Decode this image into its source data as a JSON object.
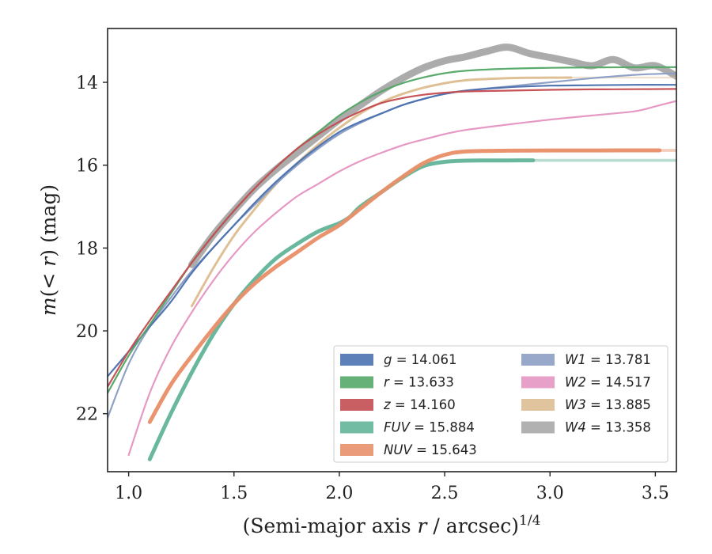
{
  "chart_data": {
    "type": "line",
    "xlabel": "(Semi-major axis r / arcsec)^{1/4}",
    "ylabel": "m(< r) (mag)",
    "xlim": [
      0.9,
      3.6
    ],
    "ylim": [
      23.4,
      12.7
    ],
    "y_inverted": true,
    "x_ticks": [
      1.0,
      1.5,
      2.0,
      2.5,
      3.0,
      3.5
    ],
    "x_tick_labels": [
      "1.0",
      "1.5",
      "2.0",
      "2.5",
      "3.0",
      "3.5"
    ],
    "y_ticks": [
      14,
      16,
      18,
      20,
      22
    ],
    "y_tick_labels": [
      "14",
      "16",
      "18",
      "20",
      "22"
    ],
    "grid": false,
    "legend_position": "lower-right",
    "series": [
      {
        "name": "g = 14.061",
        "color": "#4c72b0",
        "width": 2.2,
        "dark_end": 3.6,
        "x": [
          0.9,
          1.0,
          1.1,
          1.2,
          1.3,
          1.4,
          1.5,
          1.6,
          1.7,
          1.8,
          1.9,
          2.0,
          2.1,
          2.2,
          2.3,
          2.4,
          2.5,
          2.6,
          2.8,
          3.0,
          3.2,
          3.4,
          3.6
        ],
        "y": [
          21.1,
          20.5,
          19.9,
          19.3,
          18.6,
          18.0,
          17.45,
          16.9,
          16.4,
          15.95,
          15.55,
          15.2,
          14.95,
          14.75,
          14.55,
          14.4,
          14.28,
          14.2,
          14.12,
          14.08,
          14.07,
          14.06,
          14.061
        ]
      },
      {
        "name": "r = 13.633",
        "color": "#55a868",
        "width": 2.2,
        "dark_end": 3.6,
        "x": [
          0.9,
          1.0,
          1.1,
          1.2,
          1.3,
          1.4,
          1.5,
          1.6,
          1.7,
          1.8,
          1.9,
          2.0,
          2.1,
          2.2,
          2.3,
          2.4,
          2.5,
          2.6,
          2.8,
          3.0,
          3.2,
          3.4,
          3.6
        ],
        "y": [
          21.5,
          20.6,
          19.85,
          19.1,
          18.35,
          17.7,
          17.1,
          16.55,
          16.05,
          15.6,
          15.2,
          14.8,
          14.48,
          14.22,
          14.02,
          13.88,
          13.78,
          13.72,
          13.67,
          13.65,
          13.64,
          13.635,
          13.633
        ]
      },
      {
        "name": "z = 14.160",
        "color": "#c44e52",
        "width": 2.2,
        "dark_end": 3.6,
        "x": [
          0.9,
          1.0,
          1.1,
          1.2,
          1.3,
          1.4,
          1.5,
          1.6,
          1.7,
          1.8,
          1.9,
          2.0,
          2.1,
          2.2,
          2.3,
          2.4,
          2.5,
          2.6,
          2.8,
          3.0,
          3.2,
          3.4,
          3.6
        ],
        "y": [
          21.35,
          20.5,
          19.75,
          19.05,
          18.35,
          17.7,
          17.1,
          16.55,
          16.05,
          15.6,
          15.25,
          14.95,
          14.7,
          14.5,
          14.38,
          14.3,
          14.25,
          14.22,
          14.2,
          14.18,
          14.17,
          14.165,
          14.16
        ]
      },
      {
        "name": "FUV = 15.884",
        "color": "#64b59a",
        "width": 5,
        "dark_end": 2.92,
        "x": [
          1.1,
          1.2,
          1.3,
          1.4,
          1.5,
          1.6,
          1.7,
          1.8,
          1.9,
          2.0,
          2.05,
          2.1,
          2.2,
          2.3,
          2.4,
          2.5,
          2.6,
          2.7,
          2.8,
          2.92,
          3.2,
          3.6
        ],
        "y": [
          23.1,
          22.0,
          21.0,
          20.1,
          19.35,
          18.75,
          18.25,
          17.9,
          17.6,
          17.4,
          17.25,
          17.0,
          16.65,
          16.3,
          16.02,
          15.92,
          15.89,
          15.886,
          15.885,
          15.884,
          15.884,
          15.884
        ]
      },
      {
        "name": "NUV = 15.643",
        "color": "#e8906a",
        "width": 5,
        "dark_end": 3.52,
        "x": [
          1.1,
          1.2,
          1.3,
          1.4,
          1.5,
          1.6,
          1.7,
          1.8,
          1.9,
          2.0,
          2.1,
          2.2,
          2.3,
          2.4,
          2.5,
          2.6,
          2.8,
          3.0,
          3.2,
          3.52,
          3.6
        ],
        "y": [
          22.2,
          21.3,
          20.6,
          19.95,
          19.35,
          18.85,
          18.45,
          18.1,
          17.75,
          17.45,
          17.05,
          16.65,
          16.28,
          15.95,
          15.75,
          15.67,
          15.65,
          15.645,
          15.644,
          15.643,
          15.643
        ]
      },
      {
        "name": "W1 = 13.781",
        "color": "#8c9ec4",
        "width": 2.2,
        "dark_end": 3.6,
        "x": [
          0.9,
          1.0,
          1.1,
          1.2,
          1.3,
          1.4,
          1.5,
          1.6,
          1.7,
          1.8,
          1.9,
          2.0,
          2.1,
          2.2,
          2.3,
          2.4,
          2.5,
          2.6,
          2.8,
          3.0,
          3.2,
          3.4,
          3.6
        ],
        "y": [
          22.1,
          20.8,
          19.9,
          19.2,
          18.55,
          18.0,
          17.45,
          16.95,
          16.45,
          16.0,
          15.6,
          15.25,
          14.98,
          14.75,
          14.55,
          14.4,
          14.28,
          14.2,
          14.1,
          14.0,
          13.9,
          13.82,
          13.781
        ]
      },
      {
        "name": "W2 = 14.517",
        "color": "#e496c2",
        "width": 2.2,
        "dark_end": 3.6,
        "x": [
          1.0,
          1.1,
          1.2,
          1.3,
          1.4,
          1.5,
          1.6,
          1.7,
          1.8,
          1.9,
          2.0,
          2.1,
          2.2,
          2.3,
          2.4,
          2.5,
          2.6,
          2.8,
          3.0,
          3.2,
          3.4,
          3.5,
          3.6
        ],
        "y": [
          23.0,
          21.5,
          20.4,
          19.55,
          18.8,
          18.15,
          17.6,
          17.15,
          16.75,
          16.45,
          16.15,
          15.9,
          15.7,
          15.52,
          15.38,
          15.25,
          15.15,
          15.02,
          14.9,
          14.8,
          14.7,
          14.58,
          14.45
        ]
      },
      {
        "name": "W3 = 13.885",
        "color": "#ddbe92",
        "width": 3,
        "dark_end": 3.1,
        "x": [
          1.3,
          1.4,
          1.5,
          1.6,
          1.7,
          1.8,
          1.9,
          2.0,
          2.1,
          2.2,
          2.3,
          2.4,
          2.5,
          2.6,
          2.7,
          2.8,
          2.9,
          3.0,
          3.1,
          3.6
        ],
        "y": [
          19.4,
          18.5,
          17.7,
          17.05,
          16.45,
          15.95,
          15.5,
          15.1,
          14.75,
          14.48,
          14.28,
          14.13,
          14.02,
          13.95,
          13.92,
          13.9,
          13.89,
          13.887,
          13.885,
          13.885
        ]
      },
      {
        "name": "W4 = 13.358",
        "color": "#a9a9a9",
        "width": 9,
        "dark_end": 3.6,
        "x": [
          1.3,
          1.4,
          1.5,
          1.6,
          1.7,
          1.8,
          1.9,
          2.0,
          2.1,
          2.2,
          2.3,
          2.4,
          2.5,
          2.6,
          2.7,
          2.8,
          2.9,
          3.0,
          3.1,
          3.2,
          3.3,
          3.4,
          3.5,
          3.6
        ],
        "y": [
          18.4,
          17.7,
          17.1,
          16.55,
          16.1,
          15.7,
          15.3,
          14.9,
          14.55,
          14.2,
          13.9,
          13.65,
          13.48,
          13.38,
          13.25,
          13.15,
          13.3,
          13.4,
          13.5,
          13.6,
          13.45,
          13.65,
          13.6,
          13.85
        ]
      }
    ]
  },
  "legend": {
    "entries": [
      {
        "label": "g = 14.061",
        "color": "#4c72b0"
      },
      {
        "label": "r = 13.633",
        "color": "#55a868"
      },
      {
        "label": "z = 14.160",
        "color": "#c44e52"
      },
      {
        "label": "FUV = 15.884",
        "color": "#64b59a"
      },
      {
        "label": "NUV = 15.643",
        "color": "#e8906a"
      },
      {
        "label": "W1 = 13.781",
        "color": "#8c9ec4"
      },
      {
        "label": "W2 = 14.517",
        "color": "#e496c2"
      },
      {
        "label": "W3 = 13.885",
        "color": "#ddbe92"
      },
      {
        "label": "W4 = 13.358",
        "color": "#a9a9a9"
      }
    ]
  }
}
